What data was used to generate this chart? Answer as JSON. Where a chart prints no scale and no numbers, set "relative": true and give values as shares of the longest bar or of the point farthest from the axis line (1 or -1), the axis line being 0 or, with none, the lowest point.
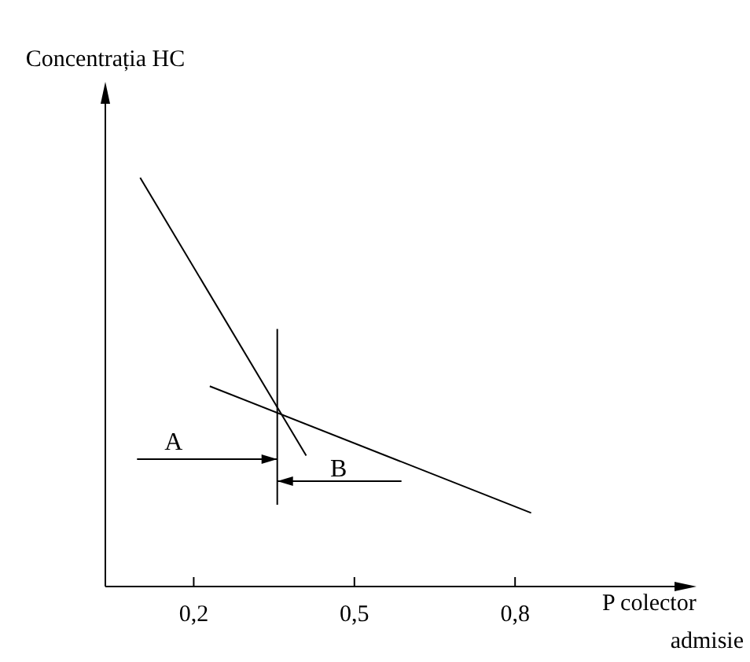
{
  "chart_data": {
    "type": "line",
    "relative": true,
    "xlabel": "P colector\nadmisie",
    "ylabel": "Concentrația HC",
    "xlim": [
      0.035,
      1.13
    ],
    "xticks": [
      {
        "value": 0.2,
        "label": "0,2"
      },
      {
        "value": 0.5,
        "label": "0,5"
      },
      {
        "value": 0.8,
        "label": "0,8"
      }
    ],
    "series": [
      {
        "color": "#000000",
        "x": [
          0.1,
          0.41
        ],
        "values": [
          1,
          0.32
        ]
      },
      {
        "color": "#000000",
        "x": [
          0.23,
          0.83
        ],
        "values": [
          0.49,
          0.18
        ]
      },
      {
        "color": "#000000",
        "x": [
          0.356,
          0.356
        ],
        "values": [
          0.63,
          0.2
        ]
      }
    ],
    "annotations": [
      "A",
      "B"
    ],
    "line_style": "solid"
  }
}
